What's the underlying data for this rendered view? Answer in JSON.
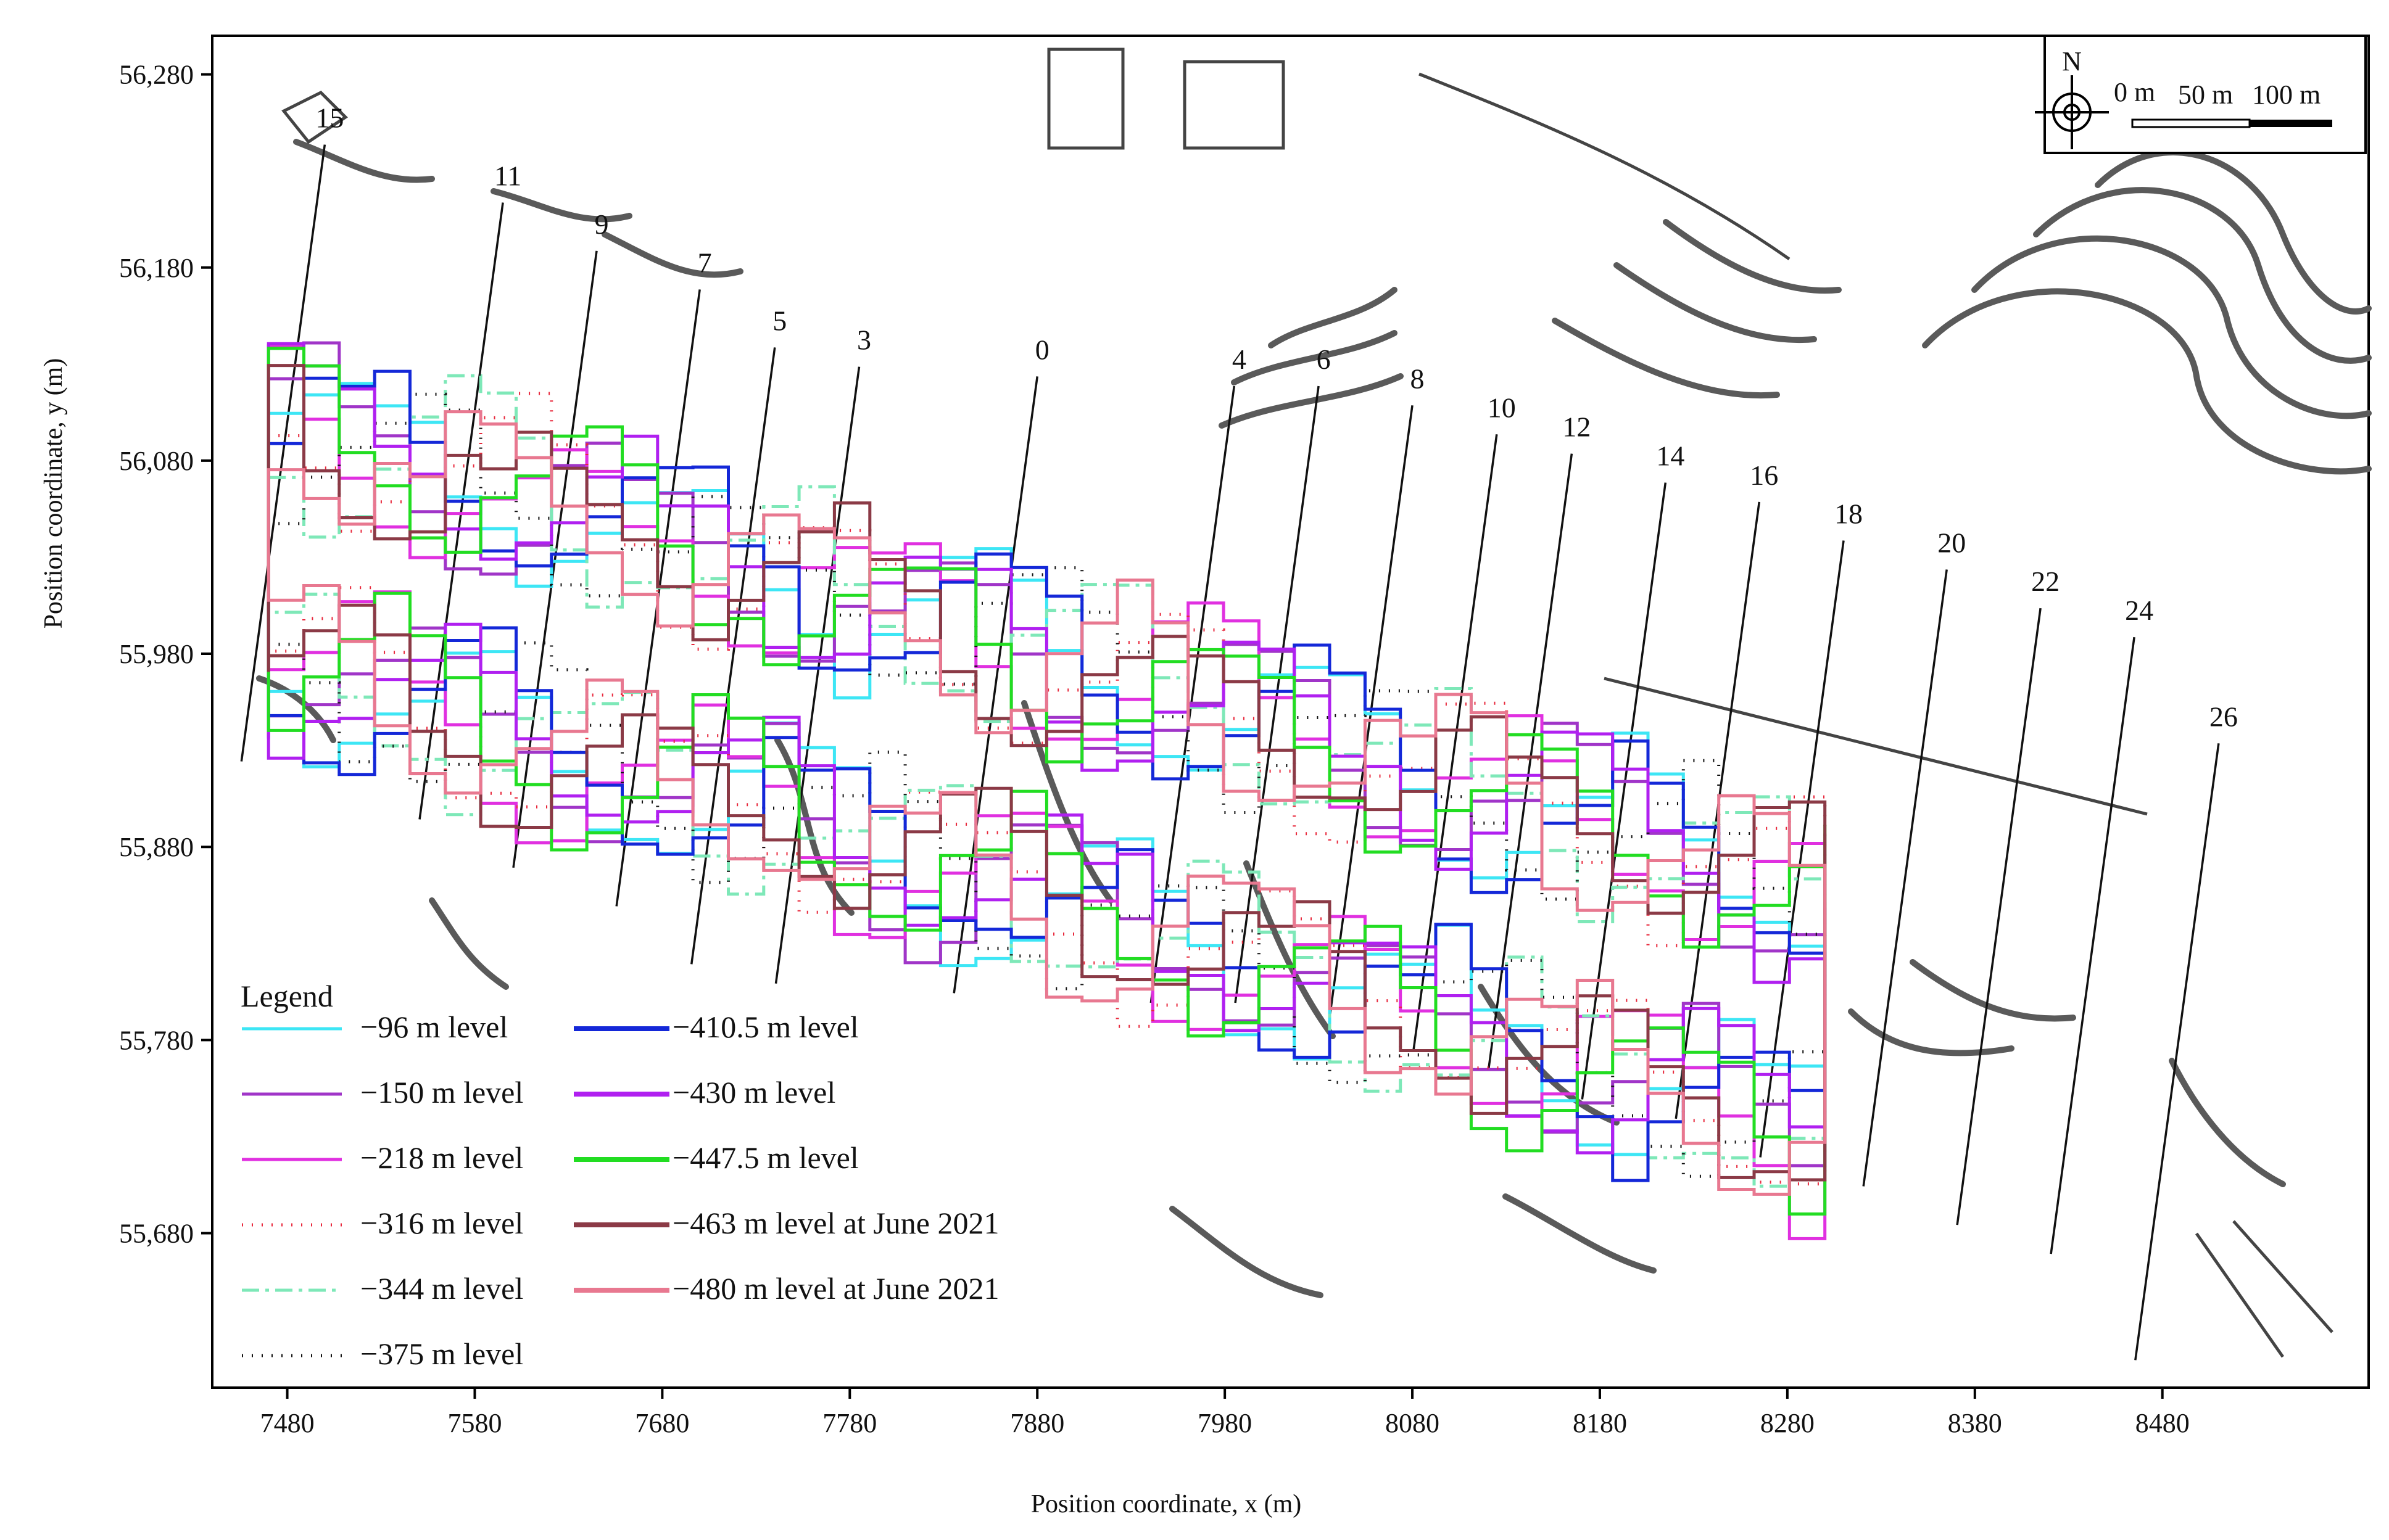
{
  "chart_data": {
    "type": "map",
    "xlabel": "Position coordinate, x (m)",
    "ylabel": "Position coordinate, y (m)",
    "xlim": [
      7440,
      8590
    ],
    "ylim": [
      55600,
      56300
    ],
    "x_ticks": [
      {
        "value": 7480,
        "label": "7480"
      },
      {
        "value": 7580,
        "label": "7580"
      },
      {
        "value": 7680,
        "label": "7680"
      },
      {
        "value": 7780,
        "label": "7780"
      },
      {
        "value": 7880,
        "label": "7880"
      },
      {
        "value": 7980,
        "label": "7980"
      },
      {
        "value": 8080,
        "label": "8080"
      },
      {
        "value": 8180,
        "label": "8180"
      },
      {
        "value": 8280,
        "label": "8280"
      },
      {
        "value": 8380,
        "label": "8380"
      },
      {
        "value": 8480,
        "label": "8480"
      }
    ],
    "y_ticks": [
      {
        "value": 56280,
        "label": "56,280"
      },
      {
        "value": 56180,
        "label": "56,180"
      },
      {
        "value": 56080,
        "label": "56,080"
      },
      {
        "value": 55980,
        "label": "55,980"
      },
      {
        "value": 55880,
        "label": "55,880"
      },
      {
        "value": 55780,
        "label": "55,780"
      },
      {
        "value": 55680,
        "label": "55,680"
      }
    ],
    "sections": [
      {
        "label": "15",
        "x": 7500,
        "y": 56250
      },
      {
        "label": "11",
        "x": 7595,
        "y": 56220
      },
      {
        "label": "9",
        "x": 7645,
        "y": 56195
      },
      {
        "label": "7",
        "x": 7700,
        "y": 56175
      },
      {
        "label": "5",
        "x": 7740,
        "y": 56145
      },
      {
        "label": "3",
        "x": 7785,
        "y": 56135
      },
      {
        "label": "0",
        "x": 7880,
        "y": 56130
      },
      {
        "label": "4",
        "x": 7985,
        "y": 56125
      },
      {
        "label": "6",
        "x": 8030,
        "y": 56125
      },
      {
        "label": "8",
        "x": 8080,
        "y": 56115
      },
      {
        "label": "10",
        "x": 8125,
        "y": 56100
      },
      {
        "label": "12",
        "x": 8165,
        "y": 56090
      },
      {
        "label": "14",
        "x": 8215,
        "y": 56075
      },
      {
        "label": "16",
        "x": 8265,
        "y": 56065
      },
      {
        "label": "18",
        "x": 8310,
        "y": 56045
      },
      {
        "label": "20",
        "x": 8365,
        "y": 56030
      },
      {
        "label": "22",
        "x": 8415,
        "y": 56010
      },
      {
        "label": "24",
        "x": 8465,
        "y": 55995
      },
      {
        "label": "26",
        "x": 8510,
        "y": 55940
      }
    ],
    "legend": {
      "title": "Legend",
      "entries": [
        {
          "label": "−96 m level",
          "color": "#3de6f5",
          "style": "solid"
        },
        {
          "label": "−150 m level",
          "color": "#a035c8",
          "style": "solid"
        },
        {
          "label": "−218 m level",
          "color": "#e030e0",
          "style": "solid"
        },
        {
          "label": "−316 m level",
          "color": "#e8283c",
          "style": "dots"
        },
        {
          "label": "−344 m level",
          "color": "#7ee8b8",
          "style": "dash"
        },
        {
          "label": "−375 m level",
          "color": "#111111",
          "style": "dots"
        },
        {
          "label": "−410.5 m level",
          "color": "#1428d8",
          "style": "solid"
        },
        {
          "label": "−430 m level",
          "color": "#b020f0",
          "style": "solid"
        },
        {
          "label": "−447.5 m level",
          "color": "#22dd22",
          "style": "solid"
        },
        {
          "label": "−463 m level at June 2021",
          "color": "#8b3a46",
          "style": "solid"
        },
        {
          "label": "−480 m level at June 2021",
          "color": "#e87890",
          "style": "solid"
        }
      ]
    },
    "scale_bar": {
      "north": "N",
      "labels": [
        "0 m",
        "50 m",
        "100 m"
      ]
    }
  }
}
